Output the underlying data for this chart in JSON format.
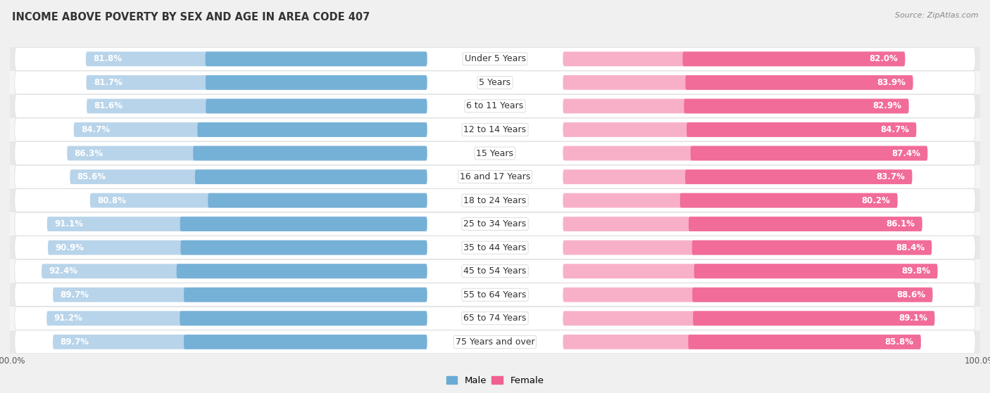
{
  "title": "INCOME ABOVE POVERTY BY SEX AND AGE IN AREA CODE 407",
  "source": "Source: ZipAtlas.com",
  "categories": [
    "Under 5 Years",
    "5 Years",
    "6 to 11 Years",
    "12 to 14 Years",
    "15 Years",
    "16 and 17 Years",
    "18 to 24 Years",
    "25 to 34 Years",
    "35 to 44 Years",
    "45 to 54 Years",
    "55 to 64 Years",
    "65 to 74 Years",
    "75 Years and over"
  ],
  "male_values": [
    81.8,
    81.7,
    81.6,
    84.7,
    86.3,
    85.6,
    80.8,
    91.1,
    90.9,
    92.4,
    89.7,
    91.2,
    89.7
  ],
  "female_values": [
    82.0,
    83.9,
    82.9,
    84.7,
    87.4,
    83.7,
    80.2,
    86.1,
    88.4,
    89.8,
    88.6,
    89.1,
    85.8
  ],
  "male_color_dark": "#6aaad4",
  "male_color_light": "#b8d4ea",
  "female_color_dark": "#f06090",
  "female_color_light": "#f8b0c8",
  "background_color": "#f0f0f0",
  "row_bg_even": "#e8e8e8",
  "row_bg_odd": "#f5f5f5",
  "bar_height": 0.62,
  "label_fontsize": 8.5,
  "cat_fontsize": 9.0,
  "title_fontsize": 10.5,
  "source_fontsize": 8.0,
  "axis_fontsize": 8.5
}
